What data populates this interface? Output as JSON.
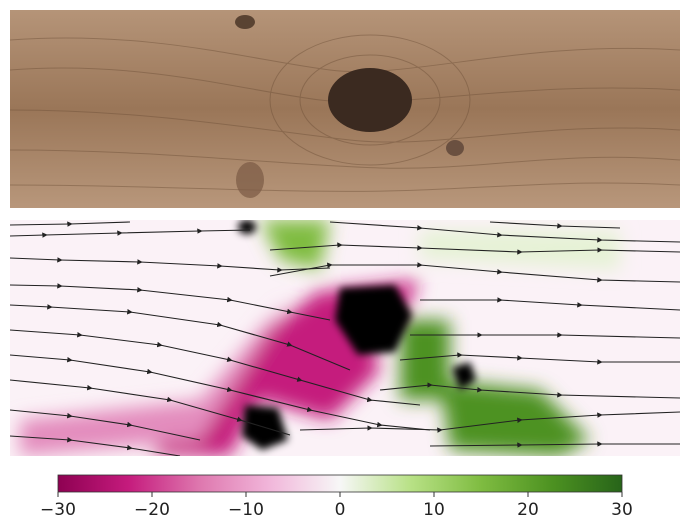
{
  "chart_data": {
    "type": "colorbar",
    "colormap": [
      "#8e0152",
      "#c51b7d",
      "#de77ae",
      "#f1b6da",
      "#f7f7f7",
      "#b8e186",
      "#7fbc41",
      "#4d9221",
      "#276419"
    ],
    "xlim": [
      -30,
      30
    ],
    "xticks": [
      {
        "value": -30,
        "label": "−30"
      },
      {
        "value": -20,
        "label": "−20"
      },
      {
        "value": -10,
        "label": "−10"
      },
      0,
      10,
      20,
      30
    ]
  }
}
